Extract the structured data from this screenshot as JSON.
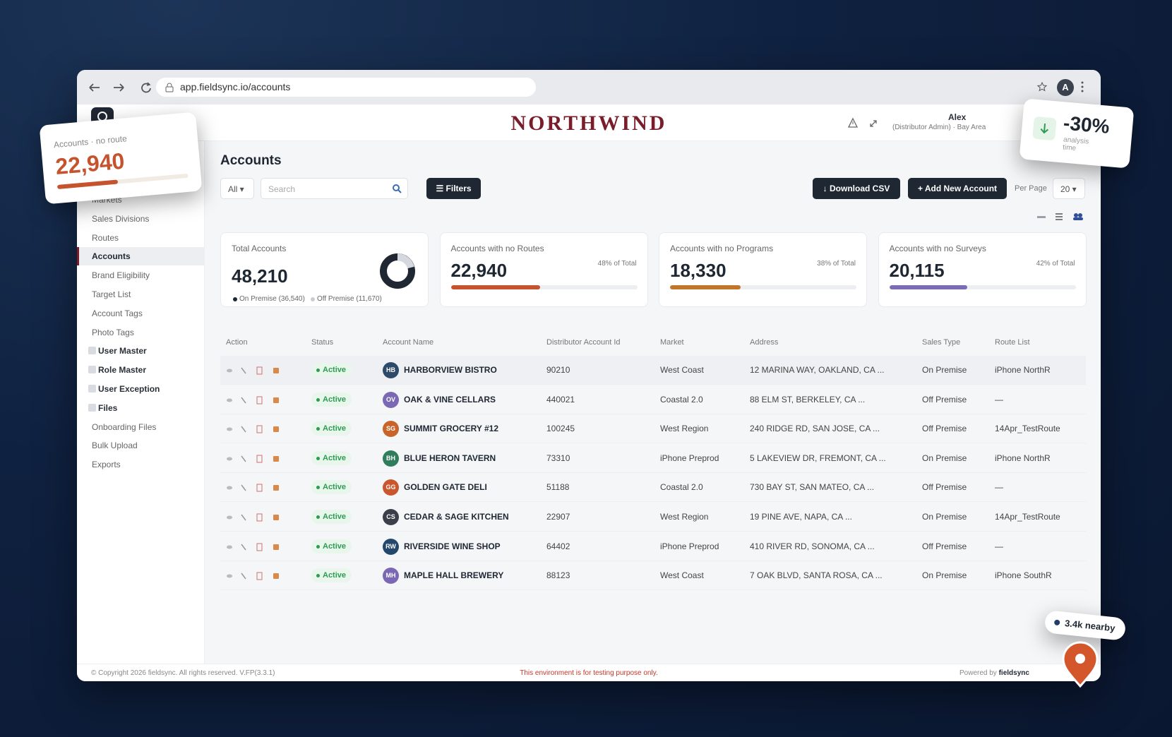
{
  "browser": {
    "url": "app.fieldsync.io/accounts",
    "profile_initial": "A"
  },
  "header": {
    "brand": "NORTHWIND",
    "user_name": "Alex",
    "user_role": "(Distributor Admin) · Bay Area"
  },
  "sidebar": {
    "items": [
      {
        "label": "Markets",
        "group": false
      },
      {
        "label": "Sales Divisions",
        "group": false
      },
      {
        "label": "Routes",
        "group": false
      },
      {
        "label": "Accounts",
        "group": false,
        "active": true
      },
      {
        "label": "Brand Eligibility",
        "group": false
      },
      {
        "label": "Target List",
        "group": false
      },
      {
        "label": "Account Tags",
        "group": false
      },
      {
        "label": "Photo Tags",
        "group": false
      },
      {
        "label": "User Master",
        "group": true
      },
      {
        "label": "Role Master",
        "group": true
      },
      {
        "label": "User Exception",
        "group": true
      },
      {
        "label": "Files",
        "group": true
      },
      {
        "label": "Onboarding Files",
        "group": false
      },
      {
        "label": "Bulk Upload",
        "group": false
      },
      {
        "label": "Exports",
        "group": false
      }
    ]
  },
  "page": {
    "title": "Accounts",
    "filter_all": "All ▾",
    "search_placeholder": "Search",
    "filters_button": "☰ Filters",
    "download_button": "↓ Download CSV",
    "add_button": "+ Add New Account",
    "per_page_label": "Per Page",
    "per_page_value": "20 ▾"
  },
  "cards": [
    {
      "title": "Total Accounts",
      "value": "48,210",
      "legend": [
        "On Premise (36,540)",
        "Off Premise (11,670)"
      ]
    },
    {
      "title": "Accounts with no Routes",
      "value": "22,940",
      "share": "48% of Total",
      "color": "#c4532e"
    },
    {
      "title": "Accounts with no Programs",
      "value": "18,330",
      "share": "38% of Total",
      "color": "#c0762a"
    },
    {
      "title": "Accounts with no Surveys",
      "value": "20,115",
      "share": "42% of Total",
      "color": "#7b6bb5"
    }
  ],
  "table": {
    "columns": [
      "Action",
      "Status",
      "Account Name",
      "Distributor Account Id",
      "Market",
      "Address",
      "Sales Type",
      "Route List"
    ],
    "rows": [
      {
        "status": "Active",
        "initials": "HB",
        "avatar_color": "#2d4a6b",
        "name": "HARBORVIEW BISTRO",
        "distributor_id": "90210",
        "market": "West Coast",
        "address": "12 MARINA WAY, OAKLAND, CA ...",
        "sales_type": "On Premise",
        "route": "iPhone NorthR"
      },
      {
        "status": "Active",
        "initials": "OV",
        "avatar_color": "#7b68b5",
        "name": "OAK & VINE CELLARS",
        "distributor_id": "440021",
        "market": "Coastal 2.0",
        "address": "88 ELM ST, BERKELEY, CA ...",
        "sales_type": "Off Premise",
        "route": "—"
      },
      {
        "status": "Active",
        "initials": "SG",
        "avatar_color": "#c8642a",
        "name": "SUMMIT GROCERY #12",
        "distributor_id": "100245",
        "market": "West Region",
        "address": "240 RIDGE RD, SAN JOSE, CA ...",
        "sales_type": "Off Premise",
        "route": "14Apr_TestRoute"
      },
      {
        "status": "Active",
        "initials": "BH",
        "avatar_color": "#2f7d5b",
        "name": "BLUE HERON TAVERN",
        "distributor_id": "73310",
        "market": "iPhone Preprod",
        "address": "5 LAKEVIEW DR, FREMONT, CA ...",
        "sales_type": "On Premise",
        "route": "iPhone NorthR"
      },
      {
        "status": "Active",
        "initials": "GG",
        "avatar_color": "#c9562c",
        "name": "GOLDEN GATE DELI",
        "distributor_id": "51188",
        "market": "Coastal 2.0",
        "address": "730 BAY ST, SAN MATEO, CA ...",
        "sales_type": "Off Premise",
        "route": "—"
      },
      {
        "status": "Active",
        "initials": "CS",
        "avatar_color": "#3a3f4a",
        "name": "CEDAR & SAGE KITCHEN",
        "distributor_id": "22907",
        "market": "West Region",
        "address": "19 PINE AVE, NAPA, CA ...",
        "sales_type": "On Premise",
        "route": "14Apr_TestRoute"
      },
      {
        "status": "Active",
        "initials": "RW",
        "avatar_color": "#24476e",
        "name": "RIVERSIDE WINE SHOP",
        "distributor_id": "64402",
        "market": "iPhone Preprod",
        "address": "410 RIVER RD, SONOMA, CA ...",
        "sales_type": "Off Premise",
        "route": "—"
      },
      {
        "status": "Active",
        "initials": "MH",
        "avatar_color": "#7b68b5",
        "name": "MAPLE HALL BREWERY",
        "distributor_id": "88123",
        "market": "West Coast",
        "address": "7 OAK BLVD, SANTA ROSA, CA ...",
        "sales_type": "On Premise",
        "route": "iPhone SouthR"
      }
    ]
  },
  "footer": {
    "copyright": "© Copyright 2026 fieldsync. All rights reserved.   V.FP(3.3.1)",
    "notice": "This environment is for testing purpose only.",
    "powered_by": "Powered by",
    "powered_brand": "fieldsync"
  },
  "overlays": {
    "route_card": {
      "label": "Accounts · no route",
      "value": "22,940"
    },
    "time_card": {
      "value": "-30%",
      "caption": "analysis time"
    },
    "nearby": "3.4k nearby"
  }
}
